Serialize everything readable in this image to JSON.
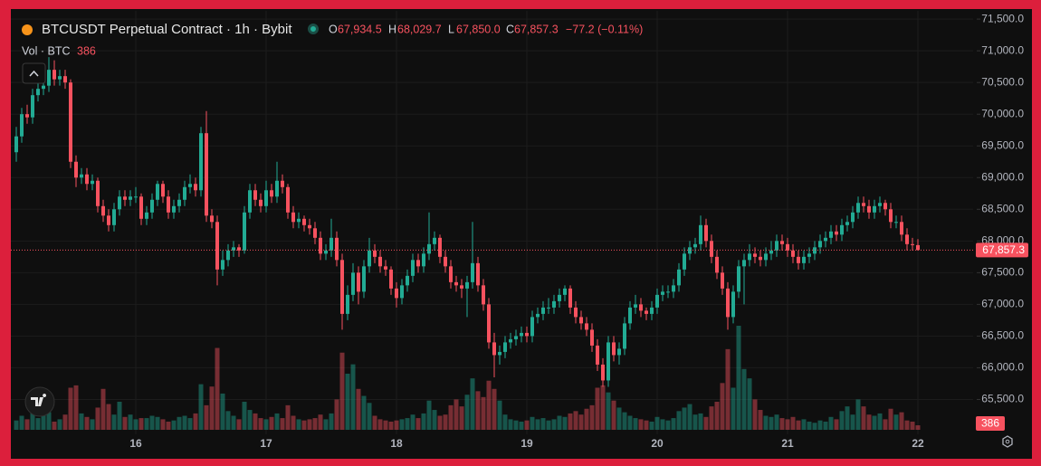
{
  "chart_data": {
    "type": "candlestick",
    "title": "BTCUSDT Perpetual Contract · 1h · Bybit",
    "legend": {
      "keys": [
        "O",
        "H",
        "L",
        "C"
      ],
      "values": [
        "67,934.5",
        "68,029.7",
        "67,850.0",
        "67,857.3"
      ],
      "change": "−77.2 (−0.11%)"
    },
    "volume_title": "Vol · BTC",
    "last_price_label": "67,857.3",
    "up_color": "#22ab94",
    "down_color": "#f7525f",
    "ylim": [
      64950,
      71630
    ],
    "yticks": [
      {
        "value": 65500,
        "label": "65,500.0"
      },
      {
        "value": 66000,
        "label": "66,000.0"
      },
      {
        "value": 66500,
        "label": "66,500.0"
      },
      {
        "value": 67000,
        "label": "67,000.0"
      },
      {
        "value": 67500,
        "label": "67,500.0"
      },
      {
        "value": 68000,
        "label": "68,000.0"
      },
      {
        "value": 68500,
        "label": "68,500.0"
      },
      {
        "value": 69000,
        "label": "69,000.0"
      },
      {
        "value": 69500,
        "label": "69,500.0"
      },
      {
        "value": 70000,
        "label": "70,000.0"
      },
      {
        "value": 70500,
        "label": "70,500.0"
      },
      {
        "value": 71000,
        "label": "71,000.0"
      },
      {
        "value": 71500,
        "label": "71,500.0"
      }
    ],
    "grid": true,
    "categories": [
      null,
      null,
      null,
      null,
      null,
      null,
      null,
      null,
      null,
      null,
      null,
      null,
      null,
      null,
      null,
      null,
      null,
      null,
      null,
      null,
      null,
      null,
      "16",
      null,
      null,
      null,
      null,
      null,
      null,
      null,
      null,
      null,
      null,
      null,
      null,
      null,
      null,
      null,
      null,
      null,
      null,
      null,
      null,
      null,
      null,
      null,
      "17",
      null,
      null,
      null,
      null,
      null,
      null,
      null,
      null,
      null,
      null,
      null,
      null,
      null,
      null,
      null,
      null,
      null,
      null,
      null,
      null,
      null,
      null,
      null,
      "18",
      null,
      null,
      null,
      null,
      null,
      null,
      null,
      null,
      null,
      null,
      null,
      null,
      null,
      null,
      null,
      null,
      null,
      null,
      null,
      null,
      null,
      null,
      null,
      "19",
      null,
      null,
      null,
      null,
      null,
      null,
      null,
      null,
      null,
      null,
      null,
      null,
      null,
      null,
      null,
      null,
      null,
      null,
      null,
      null,
      null,
      null,
      null,
      "20",
      null,
      null,
      null,
      null,
      null,
      null,
      null,
      null,
      null,
      null,
      null,
      null,
      null,
      null,
      null,
      null,
      null,
      null,
      null,
      null,
      null,
      null,
      null,
      "21",
      null,
      null,
      null,
      null,
      null,
      null,
      null,
      null,
      null,
      null,
      null,
      null,
      null,
      null,
      null,
      null,
      null,
      null,
      null,
      null,
      null,
      null,
      null,
      "22"
    ],
    "candles": [
      [
        69400,
        69800,
        69250,
        69650
      ],
      [
        69650,
        70100,
        69550,
        70000
      ],
      [
        70000,
        70150,
        69850,
        69950
      ],
      [
        69950,
        70400,
        69850,
        70300
      ],
      [
        70300,
        70550,
        70200,
        70400
      ],
      [
        70400,
        70600,
        70300,
        70450
      ],
      [
        70450,
        70900,
        70350,
        70700
      ],
      [
        70700,
        70850,
        70450,
        70550
      ],
      [
        70550,
        70700,
        70450,
        70600
      ],
      [
        70600,
        70700,
        70400,
        70500
      ],
      [
        70500,
        70550,
        69150,
        69250
      ],
      [
        69250,
        69350,
        68850,
        69000
      ],
      [
        69000,
        69150,
        68900,
        69050
      ],
      [
        69050,
        69150,
        68800,
        68900
      ],
      [
        68900,
        69050,
        68800,
        68950
      ],
      [
        68950,
        69000,
        68450,
        68550
      ],
      [
        68550,
        68650,
        68300,
        68400
      ],
      [
        68400,
        68500,
        68150,
        68250
      ],
      [
        68250,
        68600,
        68150,
        68500
      ],
      [
        68500,
        68800,
        68400,
        68700
      ],
      [
        68700,
        68800,
        68550,
        68650
      ],
      [
        68650,
        68800,
        68550,
        68700
      ],
      [
        68700,
        68850,
        68600,
        68700
      ],
      [
        68700,
        68750,
        68250,
        68350
      ],
      [
        68350,
        68550,
        68250,
        68450
      ],
      [
        68450,
        68750,
        68350,
        68650
      ],
      [
        68650,
        68950,
        68550,
        68900
      ],
      [
        68900,
        68950,
        68600,
        68700
      ],
      [
        68700,
        68800,
        68350,
        68450
      ],
      [
        68450,
        68650,
        68350,
        68550
      ],
      [
        68550,
        68750,
        68450,
        68650
      ],
      [
        68650,
        68950,
        68550,
        68850
      ],
      [
        68850,
        69050,
        68750,
        68900
      ],
      [
        68900,
        69000,
        68700,
        68800
      ],
      [
        68800,
        69800,
        68700,
        69700
      ],
      [
        69700,
        70050,
        68300,
        68400
      ],
      [
        68400,
        68500,
        68200,
        68300
      ],
      [
        68300,
        68400,
        67300,
        67550
      ],
      [
        67550,
        67850,
        67450,
        67700
      ],
      [
        67700,
        67950,
        67600,
        67850
      ],
      [
        67850,
        68000,
        67750,
        67900
      ],
      [
        67900,
        67950,
        67750,
        67850
      ],
      [
        67850,
        68550,
        67800,
        68450
      ],
      [
        68450,
        68900,
        68350,
        68800
      ],
      [
        68800,
        68900,
        68550,
        68650
      ],
      [
        68650,
        68750,
        68450,
        68550
      ],
      [
        68550,
        68950,
        68450,
        68800
      ],
      [
        68800,
        68900,
        68600,
        68700
      ],
      [
        68700,
        69250,
        68600,
        68950
      ],
      [
        68950,
        69050,
        68750,
        68850
      ],
      [
        68850,
        68900,
        68350,
        68450
      ],
      [
        68450,
        68550,
        68200,
        68300
      ],
      [
        68300,
        68450,
        68200,
        68350
      ],
      [
        68350,
        68400,
        68150,
        68250
      ],
      [
        68250,
        68350,
        68100,
        68200
      ],
      [
        68200,
        68300,
        67950,
        68050
      ],
      [
        68050,
        68150,
        67700,
        67800
      ],
      [
        67800,
        67950,
        67700,
        67850
      ],
      [
        67850,
        68350,
        67750,
        68050
      ],
      [
        68050,
        68150,
        67600,
        67700
      ],
      [
        67700,
        67800,
        66600,
        66850
      ],
      [
        66850,
        67300,
        66750,
        67150
      ],
      [
        67150,
        67650,
        67050,
        67500
      ],
      [
        67500,
        67600,
        67000,
        67200
      ],
      [
        67200,
        67700,
        67100,
        67600
      ],
      [
        67600,
        68050,
        67500,
        67850
      ],
      [
        67850,
        67950,
        67650,
        67750
      ],
      [
        67750,
        67850,
        67500,
        67600
      ],
      [
        67600,
        67700,
        67450,
        67550
      ],
      [
        67550,
        67600,
        67150,
        67250
      ],
      [
        67250,
        67350,
        66950,
        67100
      ],
      [
        67100,
        67400,
        67000,
        67300
      ],
      [
        67300,
        67550,
        67200,
        67450
      ],
      [
        67450,
        67800,
        67350,
        67700
      ],
      [
        67700,
        67800,
        67500,
        67600
      ],
      [
        67600,
        67900,
        67500,
        67800
      ],
      [
        67800,
        68450,
        67700,
        67950
      ],
      [
        67950,
        68150,
        67850,
        68050
      ],
      [
        68050,
        68100,
        67650,
        67750
      ],
      [
        67750,
        67850,
        67500,
        67600
      ],
      [
        67600,
        67700,
        67250,
        67350
      ],
      [
        67350,
        67450,
        67200,
        67300
      ],
      [
        67300,
        67400,
        67100,
        67250
      ],
      [
        67250,
        67450,
        66800,
        67350
      ],
      [
        67350,
        68300,
        67250,
        67650
      ],
      [
        67650,
        67750,
        67200,
        67300
      ],
      [
        67300,
        67400,
        66900,
        67000
      ],
      [
        67000,
        67100,
        66300,
        66400
      ],
      [
        66400,
        66550,
        65850,
        66200
      ],
      [
        66200,
        66350,
        66050,
        66250
      ],
      [
        66250,
        66500,
        66150,
        66400
      ],
      [
        66400,
        66550,
        66300,
        66450
      ],
      [
        66450,
        66600,
        66350,
        66500
      ],
      [
        66500,
        66650,
        66400,
        66550
      ],
      [
        66550,
        66650,
        66400,
        66500
      ],
      [
        66500,
        66900,
        66400,
        66800
      ],
      [
        66800,
        66950,
        66700,
        66850
      ],
      [
        66850,
        67050,
        66750,
        66950
      ],
      [
        66950,
        67100,
        66850,
        66950
      ],
      [
        66950,
        67150,
        66850,
        67050
      ],
      [
        67050,
        67250,
        66950,
        67150
      ],
      [
        67150,
        67300,
        67050,
        67250
      ],
      [
        67250,
        67300,
        66850,
        66950
      ],
      [
        66950,
        67050,
        66700,
        66800
      ],
      [
        66800,
        66900,
        66600,
        66700
      ],
      [
        66700,
        66800,
        66500,
        66600
      ],
      [
        66600,
        66700,
        66250,
        66350
      ],
      [
        66350,
        66450,
        65950,
        66050
      ],
      [
        66050,
        66150,
        65700,
        65800
      ],
      [
        65800,
        66500,
        65700,
        66400
      ],
      [
        66400,
        66500,
        66100,
        66200
      ],
      [
        66200,
        66400,
        66050,
        66300
      ],
      [
        66300,
        66800,
        66200,
        66700
      ],
      [
        66700,
        67050,
        66600,
        66950
      ],
      [
        66950,
        67150,
        66850,
        67000
      ],
      [
        67000,
        67100,
        66800,
        66900
      ],
      [
        66900,
        66950,
        66750,
        66850
      ],
      [
        66850,
        67050,
        66750,
        66950
      ],
      [
        66950,
        67250,
        66850,
        67150
      ],
      [
        67150,
        67300,
        67050,
        67200
      ],
      [
        67200,
        67300,
        67100,
        67200
      ],
      [
        67200,
        67400,
        67100,
        67300
      ],
      [
        67300,
        67650,
        67200,
        67550
      ],
      [
        67550,
        67900,
        67450,
        67800
      ],
      [
        67800,
        68000,
        67700,
        67900
      ],
      [
        67900,
        68050,
        67800,
        67950
      ],
      [
        67950,
        68400,
        67850,
        68250
      ],
      [
        68250,
        68350,
        67900,
        68000
      ],
      [
        68000,
        68100,
        67650,
        67750
      ],
      [
        67750,
        67850,
        67400,
        67500
      ],
      [
        67500,
        67600,
        67150,
        67250
      ],
      [
        67250,
        67350,
        66600,
        66800
      ],
      [
        66800,
        67300,
        66700,
        67200
      ],
      [
        67200,
        67700,
        67100,
        67600
      ],
      [
        67600,
        67800,
        67000,
        67700
      ],
      [
        67700,
        67950,
        67600,
        67800
      ],
      [
        67800,
        67900,
        67650,
        67750
      ],
      [
        67750,
        67850,
        67600,
        67700
      ],
      [
        67700,
        67900,
        67600,
        67800
      ],
      [
        67800,
        68000,
        67700,
        67850
      ],
      [
        67850,
        68100,
        67750,
        68000
      ],
      [
        68000,
        68100,
        67850,
        67950
      ],
      [
        67950,
        68050,
        67750,
        67850
      ],
      [
        67850,
        67950,
        67650,
        67750
      ],
      [
        67750,
        67850,
        67550,
        67650
      ],
      [
        67650,
        67850,
        67550,
        67750
      ],
      [
        67750,
        67900,
        67650,
        67800
      ],
      [
        67800,
        68000,
        67700,
        67900
      ],
      [
        67900,
        68100,
        67800,
        68000
      ],
      [
        68000,
        68150,
        67900,
        68050
      ],
      [
        68050,
        68250,
        67950,
        68150
      ],
      [
        68150,
        68250,
        68000,
        68100
      ],
      [
        68100,
        68350,
        68000,
        68250
      ],
      [
        68250,
        68400,
        68150,
        68300
      ],
      [
        68300,
        68550,
        68200,
        68450
      ],
      [
        68450,
        68700,
        68350,
        68600
      ],
      [
        68600,
        68700,
        68450,
        68550
      ],
      [
        68550,
        68650,
        68350,
        68450
      ],
      [
        68450,
        68650,
        68350,
        68550
      ],
      [
        68550,
        68700,
        68450,
        68600
      ],
      [
        68600,
        68650,
        68400,
        68500
      ],
      [
        68500,
        68600,
        68200,
        68300
      ],
      [
        68300,
        68400,
        68200,
        68300
      ],
      [
        68300,
        68400,
        68000,
        68100
      ],
      [
        68100,
        68200,
        67850,
        67950
      ],
      [
        67950,
        68050,
        67850,
        67934.5
      ],
      [
        67934.5,
        68029.7,
        67850,
        67857.3
      ]
    ],
    "volume": [
      800,
      1200,
      900,
      1600,
      1000,
      2200,
      1500,
      700,
      900,
      1300,
      3600,
      3800,
      1400,
      1100,
      900,
      1900,
      3500,
      2200,
      1300,
      2400,
      1100,
      1300,
      900,
      1000,
      1000,
      1200,
      1100,
      900,
      700,
      800,
      1100,
      1200,
      1000,
      1400,
      3900,
      2100,
      3700,
      7000,
      3100,
      1600,
      1200,
      900,
      2400,
      1700,
      1400,
      1000,
      900,
      1100,
      1400,
      1000,
      2100,
      1200,
      900,
      800,
      900,
      1000,
      1300,
      900,
      1400,
      2600,
      6600,
      4800,
      5600,
      3500,
      2900,
      2300,
      1200,
      900,
      800,
      700,
      800,
      900,
      1000,
      1300,
      1000,
      1400,
      2500,
      1700,
      1200,
      1300,
      2100,
      2600,
      2000,
      3000,
      4400,
      3300,
      2800,
      4200,
      3500,
      2500,
      1300,
      900,
      800,
      700,
      800,
      1100,
      900,
      1000,
      800,
      900,
      1200,
      1100,
      1400,
      1600,
      1300,
      1800,
      2100,
      3600,
      3800,
      3200,
      2500,
      1900,
      1500,
      1200,
      1000,
      900,
      800,
      700,
      1100,
      900,
      800,
      1000,
      1600,
      1900,
      2200,
      1300,
      1400,
      1100,
      2000,
      2400,
      4000,
      6900,
      3600,
      8900,
      5200,
      4400,
      2600,
      1700,
      1200,
      1100,
      1300,
      1000,
      900,
      1100,
      800,
      900,
      700,
      600,
      800,
      700,
      1100,
      900,
      1600,
      2000,
      1300,
      2600,
      2000,
      1300,
      1200,
      1400,
      900,
      1800,
      1300,
      1500,
      800,
      700,
      386
    ]
  }
}
